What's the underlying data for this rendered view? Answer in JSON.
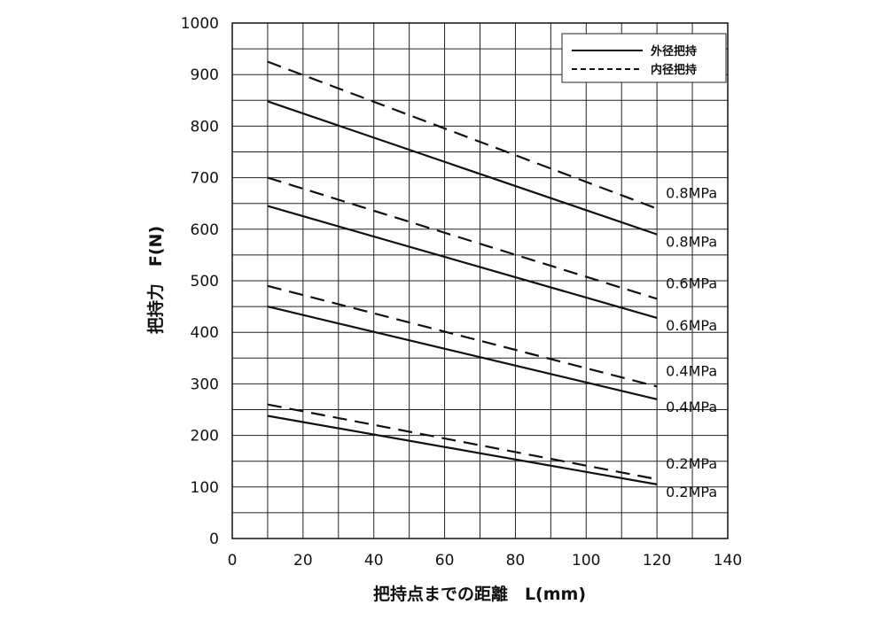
{
  "chart_data": {
    "type": "line",
    "xlabel": "把持点までの距離　L(mm)",
    "ylabel": "把持力　F(N)",
    "xlim": [
      0,
      140
    ],
    "ylim": [
      0,
      1000
    ],
    "x_ticks": [
      "0",
      "20",
      "40",
      "60",
      "80",
      "100",
      "120",
      "140"
    ],
    "y_ticks": [
      "0",
      "100",
      "200",
      "300",
      "400",
      "500",
      "600",
      "700",
      "800",
      "900",
      "1000"
    ],
    "grid": true,
    "legend_position": "top-right",
    "legend": [
      {
        "label": "外径把持",
        "style": "solid"
      },
      {
        "label": "内径把持",
        "style": "dashed"
      }
    ],
    "series": [
      {
        "group": "内径把持",
        "style": "dashed",
        "label": "0.8MPa",
        "x": [
          10,
          120
        ],
        "values": [
          925,
          640
        ]
      },
      {
        "group": "外径把持",
        "style": "solid",
        "label": "0.8MPa",
        "x": [
          10,
          120
        ],
        "values": [
          848,
          590
        ]
      },
      {
        "group": "内径把持",
        "style": "dashed",
        "label": "0.6MPa",
        "x": [
          10,
          120
        ],
        "values": [
          700,
          465
        ]
      },
      {
        "group": "外径把持",
        "style": "solid",
        "label": "0.6MPa",
        "x": [
          10,
          120
        ],
        "values": [
          645,
          428
        ]
      },
      {
        "group": "内径把持",
        "style": "dashed",
        "label": "0.4MPa",
        "x": [
          10,
          120
        ],
        "values": [
          490,
          295
        ]
      },
      {
        "group": "外径把持",
        "style": "solid",
        "label": "0.4MPa",
        "x": [
          10,
          120
        ],
        "values": [
          450,
          270
        ]
      },
      {
        "group": "内径把持",
        "style": "dashed",
        "label": "0.2MPa",
        "x": [
          10,
          120
        ],
        "values": [
          260,
          115
        ]
      },
      {
        "group": "外径把持",
        "style": "solid",
        "label": "0.2MPa",
        "x": [
          10,
          120
        ],
        "values": [
          238,
          105
        ]
      }
    ],
    "colors": {
      "line": "#111111",
      "grid": "#222222",
      "background": "#ffffff"
    }
  }
}
